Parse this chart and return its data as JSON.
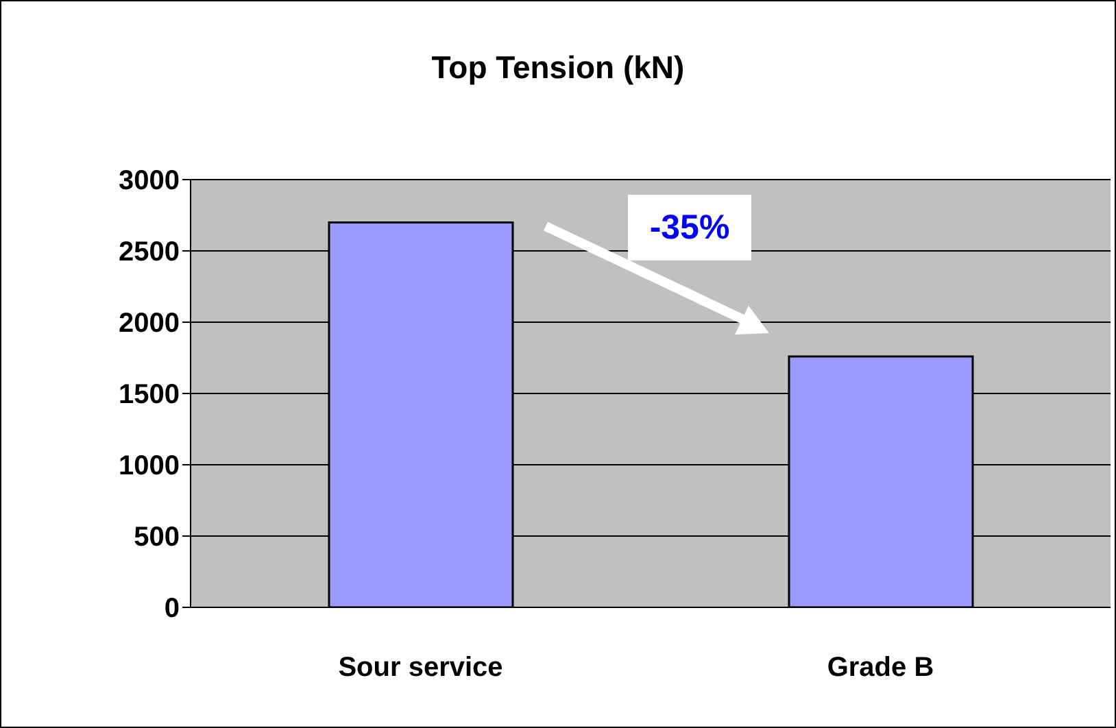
{
  "chart_data": {
    "type": "bar",
    "title": "Top Tension (kN)",
    "categories": [
      "Sour service",
      "Grade B"
    ],
    "values": [
      2700,
      1760
    ],
    "color": "#9999ff",
    "ylim": [
      0,
      3000
    ],
    "yticks": [
      0,
      500,
      1000,
      1500,
      2000,
      2500,
      3000
    ],
    "grid": "y",
    "annotations": [
      "-35%"
    ]
  }
}
